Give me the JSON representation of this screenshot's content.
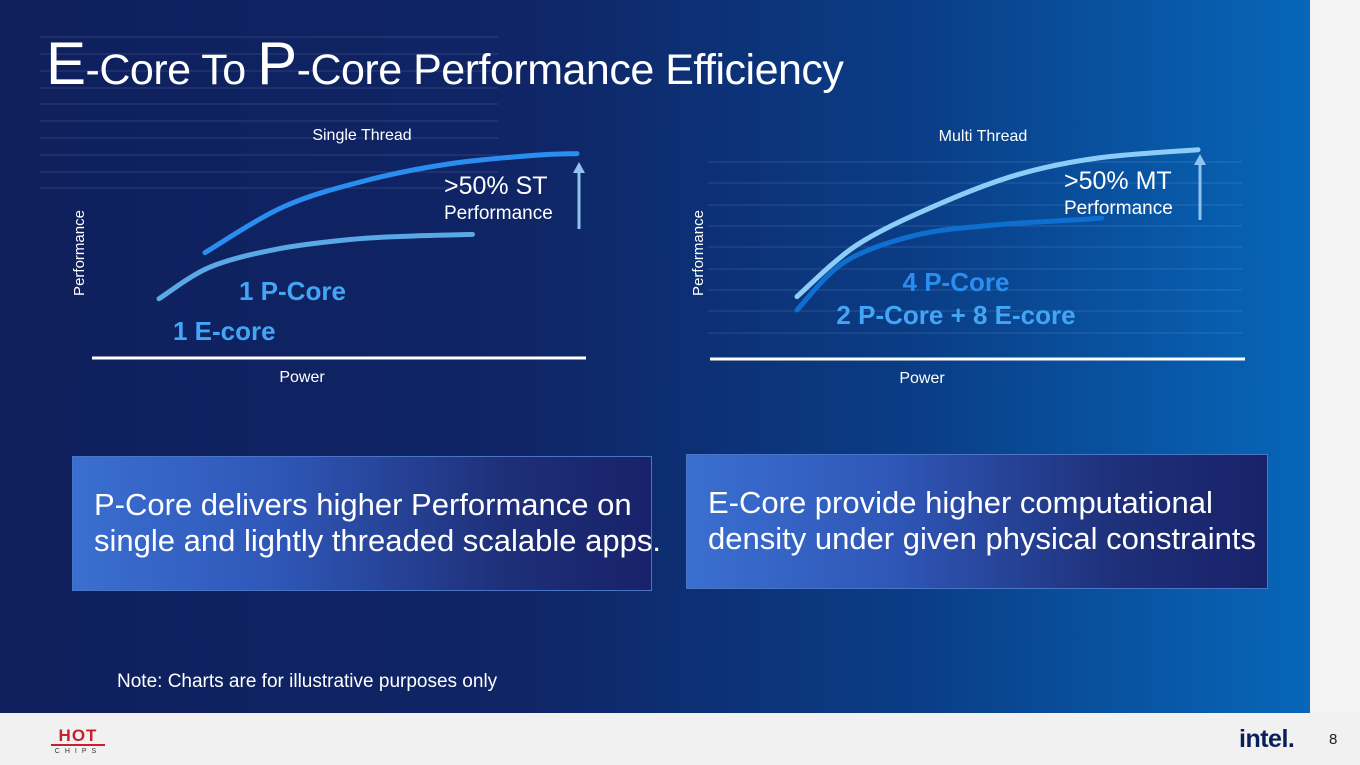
{
  "title": {
    "e_letter": "E",
    "part1": "-Core To ",
    "p_letter": "P",
    "part2": "-Core Performance Efficiency"
  },
  "chart_data": [
    {
      "type": "line",
      "title": "Single Thread",
      "xlabel": "Power",
      "ylabel": "Performance",
      "annotation": {
        "main": ">50% ST",
        "sub": "Performance"
      },
      "series": [
        {
          "name": "1 E-core",
          "x": [
            0.0,
            0.12,
            0.28,
            0.46,
            0.6,
            0.75
          ],
          "y": [
            0.08,
            0.27,
            0.38,
            0.44,
            0.46,
            0.47
          ],
          "color": "#5aa8e6"
        },
        {
          "name": "1 P-Core",
          "x": [
            0.11,
            0.3,
            0.5,
            0.7,
            0.9,
            1.0
          ],
          "y": [
            0.36,
            0.64,
            0.8,
            0.9,
            0.95,
            0.96
          ],
          "color": "#2a8ef0"
        }
      ],
      "series_label_colors": [
        "#42a5f5",
        "#42a5f5"
      ],
      "colors": {
        "axis": "#ffffff",
        "arrow": "#8fc2ee"
      }
    },
    {
      "type": "line",
      "title": "Multi Thread",
      "xlabel": "Power",
      "ylabel": "Performance",
      "annotation": {
        "main": ">50% MT",
        "sub": "Performance"
      },
      "series": [
        {
          "name": "4 P-Core",
          "x": [
            0.0,
            0.15,
            0.35,
            0.55,
            0.75,
            1.0
          ],
          "y": [
            0.11,
            0.42,
            0.66,
            0.84,
            0.94,
            0.99
          ],
          "color": "#8ccdf8"
        },
        {
          "name": "2 P-Core + 8 E-core",
          "x": [
            0.0,
            0.12,
            0.3,
            0.5,
            0.7,
            0.76
          ],
          "y": [
            0.03,
            0.32,
            0.48,
            0.54,
            0.57,
            0.58
          ],
          "color": "#0f6fd0"
        }
      ],
      "series_label_colors": [
        "#2a8ef0",
        "#42a5f5"
      ],
      "colors": {
        "axis": "#ffffff",
        "arrow": "#8fc2ee"
      }
    }
  ],
  "boxes": {
    "left": [
      "P-Core delivers higher Performance on",
      "single and lightly threaded scalable apps."
    ],
    "right": [
      "E-Core provide higher computational",
      "density under given physical constraints"
    ]
  },
  "note": "Note: Charts are for illustrative purposes only",
  "footer": {
    "hot": "HOT",
    "chips": "CHIPS",
    "intel": "intel.",
    "page_number": "8"
  }
}
